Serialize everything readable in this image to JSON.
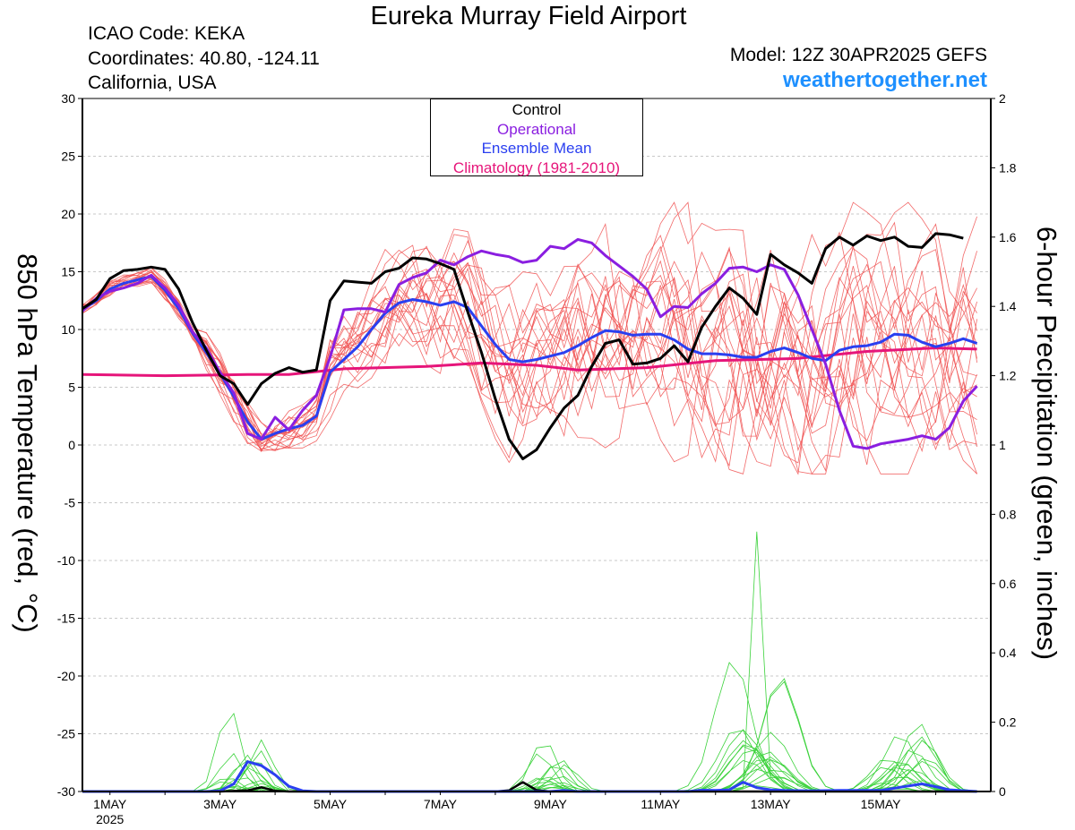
{
  "header": {
    "title": "Eureka Murray Field Airport",
    "icao": "ICAO Code: KEKA",
    "coordinates": "Coordinates: 40.80, -124.11",
    "region": "California, USA",
    "model": "Model: 12Z 30APR2025 GEFS",
    "brand": "weathertogether.net"
  },
  "legend": {
    "items": [
      {
        "label": "Control",
        "color": "#000000"
      },
      {
        "label": "Operational",
        "color": "#8a1ee0"
      },
      {
        "label": "Ensemble Mean",
        "color": "#2a3ff0"
      },
      {
        "label": "Climatology (1981-2010)",
        "color": "#e6157a"
      }
    ]
  },
  "chart_data": {
    "type": "line",
    "title": "Eureka Murray Field Airport",
    "xlabel": "",
    "ylabel": "850 hPa Temperature (red, °C)",
    "ylabel_right": "6-hour Precipitation (green, inches)",
    "x_unit": "days since 2025-04-30 12Z",
    "xlim": [
      0.5,
      17.0
    ],
    "ylim": [
      -30,
      30
    ],
    "ylim_right": [
      0,
      2
    ],
    "grid": true,
    "x_ticks": [
      {
        "x": 1,
        "label": "1MAY",
        "sub": "2025"
      },
      {
        "x": 3,
        "label": "3MAY"
      },
      {
        "x": 5,
        "label": "5MAY"
      },
      {
        "x": 7,
        "label": "7MAY"
      },
      {
        "x": 9,
        "label": "9MAY"
      },
      {
        "x": 11,
        "label": "11MAY"
      },
      {
        "x": 13,
        "label": "13MAY"
      },
      {
        "x": 15,
        "label": "15MAY"
      }
    ],
    "y_ticks": [
      30,
      25,
      20,
      15,
      10,
      5,
      0,
      -5,
      -10,
      -15,
      -20,
      -25,
      -30
    ],
    "y_ticks_right": [
      2,
      1.8,
      1.6,
      1.4,
      1.2,
      1,
      0.8,
      0.6,
      0.4,
      0.2,
      0
    ],
    "temperature": {
      "control": [
        [
          0.5,
          11.8
        ],
        [
          0.75,
          12.6
        ],
        [
          1.0,
          14.4
        ],
        [
          1.25,
          15.1
        ],
        [
          1.5,
          15.2
        ],
        [
          1.75,
          15.4
        ],
        [
          2.0,
          15.2
        ],
        [
          2.25,
          13.5
        ],
        [
          2.5,
          10.6
        ],
        [
          2.75,
          8.2
        ],
        [
          3.0,
          6.0
        ],
        [
          3.25,
          5.3
        ],
        [
          3.5,
          3.5
        ],
        [
          3.75,
          5.3
        ],
        [
          4.0,
          6.2
        ],
        [
          4.25,
          6.7
        ],
        [
          4.5,
          6.3
        ],
        [
          4.75,
          6.5
        ],
        [
          5.0,
          12.5
        ],
        [
          5.25,
          14.2
        ],
        [
          5.5,
          14.1
        ],
        [
          5.75,
          14.0
        ],
        [
          6.0,
          15.0
        ],
        [
          6.25,
          15.3
        ],
        [
          6.5,
          16.2
        ],
        [
          6.75,
          16.1
        ],
        [
          7.0,
          15.7
        ],
        [
          7.25,
          15.2
        ],
        [
          7.5,
          11.5
        ],
        [
          7.75,
          8.0
        ],
        [
          8.0,
          4.0
        ],
        [
          8.25,
          0.5
        ],
        [
          8.5,
          -1.2
        ],
        [
          8.75,
          -0.4
        ],
        [
          9.0,
          1.5
        ],
        [
          9.25,
          3.2
        ],
        [
          9.5,
          4.3
        ],
        [
          9.75,
          6.8
        ],
        [
          10.0,
          8.8
        ],
        [
          10.25,
          9.1
        ],
        [
          10.5,
          7.0
        ],
        [
          10.75,
          7.1
        ],
        [
          11.0,
          7.5
        ],
        [
          11.25,
          8.6
        ],
        [
          11.5,
          7.2
        ],
        [
          11.75,
          10.2
        ],
        [
          12.0,
          12.0
        ],
        [
          12.25,
          13.6
        ],
        [
          12.5,
          12.7
        ],
        [
          12.75,
          11.3
        ],
        [
          13.0,
          16.5
        ],
        [
          13.25,
          15.6
        ],
        [
          13.5,
          14.9
        ],
        [
          13.75,
          14.0
        ],
        [
          14.0,
          17.0
        ],
        [
          14.25,
          18.0
        ],
        [
          14.5,
          17.3
        ],
        [
          14.75,
          18.1
        ],
        [
          15.0,
          17.7
        ],
        [
          15.25,
          18.0
        ],
        [
          15.5,
          17.2
        ],
        [
          15.75,
          17.1
        ],
        [
          16.0,
          18.3
        ],
        [
          16.25,
          18.2
        ],
        [
          16.5,
          17.9
        ]
      ],
      "operational": [
        [
          0.5,
          11.6
        ],
        [
          0.75,
          12.7
        ],
        [
          1.0,
          13.3
        ],
        [
          1.25,
          13.6
        ],
        [
          1.5,
          14.0
        ],
        [
          1.75,
          14.7
        ],
        [
          2.0,
          13.6
        ],
        [
          2.25,
          12.1
        ],
        [
          2.5,
          9.8
        ],
        [
          2.75,
          8.4
        ],
        [
          3.0,
          6.3
        ],
        [
          3.25,
          4.5
        ],
        [
          3.5,
          1.0
        ],
        [
          3.75,
          0.5
        ],
        [
          4.0,
          2.4
        ],
        [
          4.25,
          1.3
        ],
        [
          4.5,
          3.0
        ],
        [
          4.75,
          4.3
        ],
        [
          5.0,
          7.6
        ],
        [
          5.25,
          11.7
        ],
        [
          5.5,
          11.8
        ],
        [
          5.75,
          11.8
        ],
        [
          6.0,
          11.5
        ],
        [
          6.25,
          13.9
        ],
        [
          6.5,
          14.5
        ],
        [
          6.75,
          14.9
        ],
        [
          7.0,
          16.0
        ],
        [
          7.25,
          15.6
        ],
        [
          7.5,
          16.3
        ],
        [
          7.75,
          16.8
        ],
        [
          8.0,
          16.5
        ],
        [
          8.25,
          16.3
        ],
        [
          8.5,
          15.8
        ],
        [
          8.75,
          16.0
        ],
        [
          9.0,
          17.2
        ],
        [
          9.25,
          17.0
        ],
        [
          9.5,
          17.8
        ],
        [
          9.75,
          17.5
        ],
        [
          10.0,
          16.4
        ],
        [
          10.25,
          15.5
        ],
        [
          10.5,
          14.6
        ],
        [
          10.75,
          13.5
        ],
        [
          11.0,
          11.1
        ],
        [
          11.25,
          12.0
        ],
        [
          11.5,
          11.9
        ],
        [
          11.75,
          13.1
        ],
        [
          12.0,
          14.0
        ],
        [
          12.25,
          15.3
        ],
        [
          12.5,
          15.4
        ],
        [
          12.75,
          15.0
        ],
        [
          13.0,
          15.6
        ],
        [
          13.25,
          15.2
        ],
        [
          13.5,
          13.0
        ],
        [
          13.75,
          10.0
        ],
        [
          14.0,
          7.0
        ],
        [
          14.25,
          3.0
        ],
        [
          14.5,
          -0.1
        ],
        [
          14.75,
          -0.3
        ],
        [
          15.0,
          0.1
        ],
        [
          15.25,
          0.3
        ],
        [
          15.5,
          0.5
        ],
        [
          15.75,
          0.8
        ],
        [
          16.0,
          0.5
        ],
        [
          16.25,
          1.5
        ],
        [
          16.5,
          3.8
        ],
        [
          16.75,
          5.1
        ]
      ],
      "ensemble_mean": [
        [
          0.5,
          11.7
        ],
        [
          0.75,
          12.5
        ],
        [
          1.0,
          13.5
        ],
        [
          1.25,
          14.0
        ],
        [
          1.5,
          14.3
        ],
        [
          1.75,
          14.6
        ],
        [
          2.0,
          13.4
        ],
        [
          2.25,
          11.8
        ],
        [
          2.5,
          9.7
        ],
        [
          2.75,
          8.0
        ],
        [
          3.0,
          6.2
        ],
        [
          3.25,
          4.2
        ],
        [
          3.5,
          2.0
        ],
        [
          3.75,
          0.5
        ],
        [
          4.0,
          1.0
        ],
        [
          4.25,
          1.4
        ],
        [
          4.5,
          1.7
        ],
        [
          4.75,
          2.5
        ],
        [
          5.0,
          6.3
        ],
        [
          5.25,
          7.4
        ],
        [
          5.5,
          8.5
        ],
        [
          5.75,
          10.0
        ],
        [
          6.0,
          11.4
        ],
        [
          6.25,
          12.3
        ],
        [
          6.5,
          12.6
        ],
        [
          6.75,
          12.4
        ],
        [
          7.0,
          12.1
        ],
        [
          7.25,
          12.4
        ],
        [
          7.5,
          11.9
        ],
        [
          7.75,
          10.3
        ],
        [
          8.0,
          8.7
        ],
        [
          8.25,
          7.4
        ],
        [
          8.5,
          7.2
        ],
        [
          8.75,
          7.4
        ],
        [
          9.0,
          7.7
        ],
        [
          9.25,
          8.0
        ],
        [
          9.5,
          8.6
        ],
        [
          9.75,
          9.3
        ],
        [
          10.0,
          9.9
        ],
        [
          10.25,
          9.8
        ],
        [
          10.5,
          9.5
        ],
        [
          10.75,
          9.6
        ],
        [
          11.0,
          9.6
        ],
        [
          11.25,
          9.1
        ],
        [
          11.5,
          8.3
        ],
        [
          11.75,
          7.9
        ],
        [
          12.0,
          7.9
        ],
        [
          12.25,
          7.8
        ],
        [
          12.5,
          7.6
        ],
        [
          12.75,
          7.6
        ],
        [
          13.0,
          8.1
        ],
        [
          13.25,
          8.4
        ],
        [
          13.5,
          8.0
        ],
        [
          13.75,
          7.5
        ],
        [
          14.0,
          7.3
        ],
        [
          14.25,
          8.2
        ],
        [
          14.5,
          8.5
        ],
        [
          14.75,
          8.6
        ],
        [
          15.0,
          8.9
        ],
        [
          15.25,
          9.6
        ],
        [
          15.5,
          9.5
        ],
        [
          15.75,
          8.9
        ],
        [
          16.0,
          8.5
        ],
        [
          16.25,
          8.8
        ],
        [
          16.5,
          9.2
        ],
        [
          16.75,
          8.8
        ]
      ],
      "climatology": [
        [
          0.5,
          6.1
        ],
        [
          2.0,
          6.0
        ],
        [
          3.5,
          6.1
        ],
        [
          4.25,
          6.1
        ],
        [
          5.25,
          6.6
        ],
        [
          6.75,
          6.8
        ],
        [
          7.75,
          7.1
        ],
        [
          8.75,
          6.9
        ],
        [
          9.5,
          6.5
        ],
        [
          10.75,
          6.7
        ],
        [
          12.0,
          7.3
        ],
        [
          13.5,
          7.5
        ],
        [
          14.75,
          8.1
        ],
        [
          16.0,
          8.4
        ],
        [
          16.75,
          8.3
        ]
      ]
    },
    "precipitation": {
      "control": [
        [
          0.5,
          0
        ],
        [
          3.0,
          0
        ],
        [
          3.5,
          0.003
        ],
        [
          3.75,
          0.012
        ],
        [
          4.0,
          0.002
        ],
        [
          4.25,
          0
        ],
        [
          8.0,
          0
        ],
        [
          8.25,
          0.003
        ],
        [
          8.5,
          0.027
        ],
        [
          8.75,
          0.004
        ],
        [
          9.0,
          0
        ],
        [
          16.75,
          0
        ]
      ],
      "ensemble_mean": [
        [
          0.5,
          0
        ],
        [
          2.75,
          0
        ],
        [
          3.0,
          0.002
        ],
        [
          3.25,
          0.022
        ],
        [
          3.5,
          0.086
        ],
        [
          3.75,
          0.075
        ],
        [
          4.0,
          0.048
        ],
        [
          4.25,
          0.015
        ],
        [
          4.5,
          0.002
        ],
        [
          4.75,
          0
        ],
        [
          9.0,
          0
        ],
        [
          9.25,
          0.003
        ],
        [
          9.5,
          0
        ],
        [
          11.5,
          0
        ],
        [
          11.75,
          0.004
        ],
        [
          12.0,
          0.003
        ],
        [
          12.25,
          0.005
        ],
        [
          12.5,
          0.027
        ],
        [
          12.75,
          0.011
        ],
        [
          13.0,
          0.005
        ],
        [
          13.25,
          0.003
        ],
        [
          13.75,
          0.002
        ],
        [
          14.25,
          0.003
        ],
        [
          15.0,
          0.003
        ],
        [
          15.5,
          0.016
        ],
        [
          15.75,
          0.022
        ],
        [
          16.0,
          0.014
        ],
        [
          16.25,
          0.005
        ],
        [
          16.75,
          0
        ]
      ]
    }
  }
}
